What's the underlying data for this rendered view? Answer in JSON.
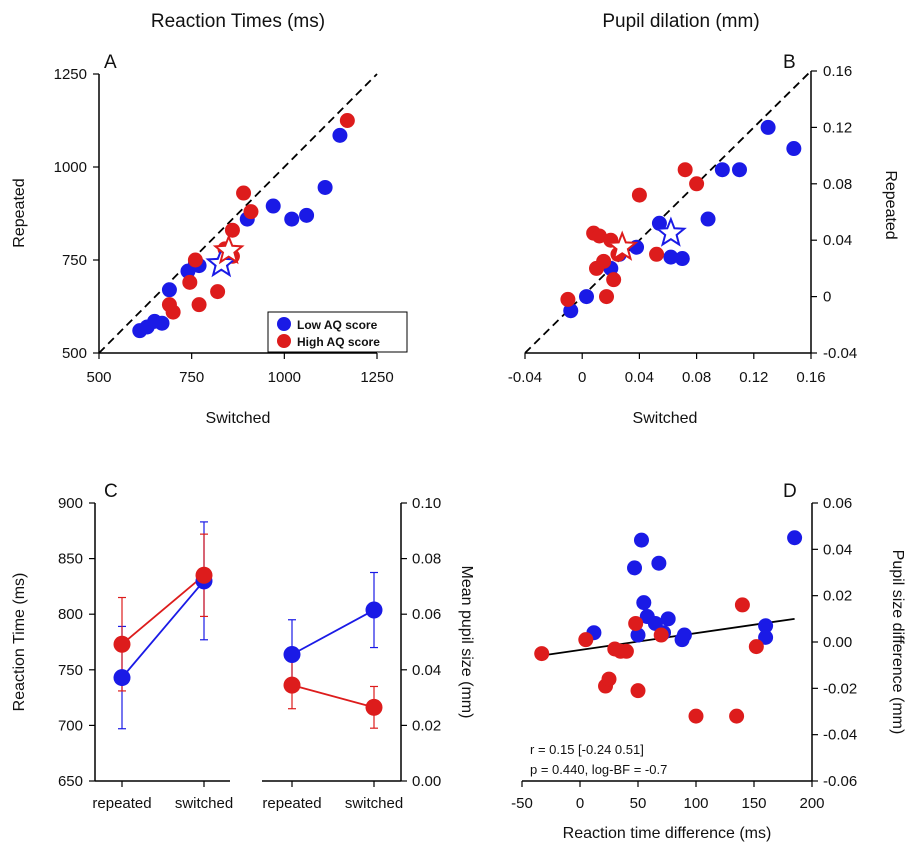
{
  "colors": {
    "low": "#1a1ae6",
    "high": "#dd1c1c",
    "axis": "#000000"
  },
  "chart_data": [
    {
      "panel": "A",
      "type": "scatter",
      "title": "Reaction Times (ms)",
      "xlabel": "Switched",
      "ylabel": "Repeated",
      "xlim": [
        500,
        1250
      ],
      "ylim": [
        500,
        1250
      ],
      "xticks": [
        500,
        750,
        1000,
        1250
      ],
      "yticks": [
        500,
        750,
        1000,
        1250
      ],
      "diagonal": true,
      "legend": {
        "position": "bottom-right",
        "entries": [
          "Low AQ score",
          "High AQ score"
        ]
      },
      "series": [
        {
          "name": "Low AQ score",
          "color": "low",
          "points": [
            [
              610,
              560
            ],
            [
              630,
              570
            ],
            [
              650,
              585
            ],
            [
              670,
              580
            ],
            [
              690,
              670
            ],
            [
              740,
              720
            ],
            [
              760,
              740
            ],
            [
              770,
              735
            ],
            [
              830,
              740
            ],
            [
              900,
              860
            ],
            [
              970,
              895
            ],
            [
              1020,
              860
            ],
            [
              1060,
              870
            ],
            [
              1110,
              945
            ],
            [
              1150,
              1085
            ]
          ],
          "mean": [
            830,
            740
          ]
        },
        {
          "name": "High AQ score",
          "color": "high",
          "points": [
            [
              690,
              630
            ],
            [
              700,
              610
            ],
            [
              745,
              690
            ],
            [
              760,
              750
            ],
            [
              770,
              630
            ],
            [
              820,
              665
            ],
            [
              840,
              780
            ],
            [
              860,
              830
            ],
            [
              860,
              760
            ],
            [
              890,
              930
            ],
            [
              910,
              880
            ],
            [
              1170,
              1125
            ]
          ],
          "mean": [
            850,
            775
          ]
        }
      ]
    },
    {
      "panel": "B",
      "type": "scatter",
      "title": "Pupil dilation (mm)",
      "xlabel": "Switched",
      "ylabel": "Repeated",
      "xlim": [
        -0.04,
        0.16
      ],
      "ylim": [
        -0.04,
        0.16
      ],
      "xticks": [
        -0.04,
        0,
        0.04,
        0.08,
        0.12,
        0.16
      ],
      "xtick_labels": [
        "-0.04",
        "0",
        "0.04",
        "0.08",
        "0.12",
        "0.16"
      ],
      "yticks": [
        -0.04,
        0,
        0.04,
        0.08,
        0.12,
        0.16
      ],
      "ytick_labels": [
        "-0.04",
        "0",
        "0.04",
        "0.08",
        "0.12",
        "0.16"
      ],
      "diagonal": true,
      "series": [
        {
          "name": "Low AQ score",
          "color": "low",
          "points": [
            [
              -0.008,
              -0.01
            ],
            [
              0.003,
              0.0
            ],
            [
              0.02,
              0.02
            ],
            [
              0.026,
              0.03
            ],
            [
              0.038,
              0.035
            ],
            [
              0.054,
              0.052
            ],
            [
              0.062,
              0.028
            ],
            [
              0.07,
              0.027
            ],
            [
              0.088,
              0.055
            ],
            [
              0.098,
              0.09
            ],
            [
              0.11,
              0.09
            ],
            [
              0.13,
              0.12
            ],
            [
              0.148,
              0.105
            ]
          ],
          "mean": [
            0.062,
            0.045
          ]
        },
        {
          "name": "High AQ score",
          "color": "high",
          "points": [
            [
              -0.01,
              -0.002
            ],
            [
              0.008,
              0.045
            ],
            [
              0.01,
              0.02
            ],
            [
              0.012,
              0.043
            ],
            [
              0.015,
              0.025
            ],
            [
              0.017,
              0.0
            ],
            [
              0.02,
              0.04
            ],
            [
              0.022,
              0.012
            ],
            [
              0.025,
              0.03
            ],
            [
              0.04,
              0.072
            ],
            [
              0.052,
              0.03
            ],
            [
              0.072,
              0.09
            ],
            [
              0.08,
              0.08
            ]
          ],
          "mean": [
            0.028,
            0.035
          ]
        }
      ]
    },
    {
      "panel": "C",
      "type": "line",
      "ylabel_left": "Reaction Time (ms)",
      "ylabel_right": "Mean pupil size (mm)",
      "categories": [
        "repeated",
        "switched"
      ],
      "left_ylim": [
        650,
        900
      ],
      "left_yticks": [
        650,
        700,
        750,
        800,
        850,
        900
      ],
      "right_ylim": [
        0,
        0.1
      ],
      "right_yticks": [
        0,
        0.02,
        0.04,
        0.06,
        0.08,
        0.1
      ],
      "right_ytick_labels": [
        "0.00",
        "0.02",
        "0.04",
        "0.06",
        "0.08",
        "0.10"
      ],
      "rt": [
        {
          "name": "Low AQ score",
          "color": "low",
          "values": [
            743,
            830
          ],
          "err": [
            46,
            53
          ]
        },
        {
          "name": "High AQ score",
          "color": "high",
          "values": [
            773,
            835
          ],
          "err": [
            42,
            37
          ]
        }
      ],
      "pupil": [
        {
          "name": "Low AQ score",
          "color": "low",
          "values": [
            0.0455,
            0.0615
          ],
          "err": [
            0.0125,
            0.0135
          ]
        },
        {
          "name": "High AQ score",
          "color": "high",
          "values": [
            0.0345,
            0.0265
          ],
          "err": [
            0.0085,
            0.0075
          ]
        }
      ]
    },
    {
      "panel": "D",
      "type": "scatter",
      "xlabel": "Reaction time difference (ms)",
      "ylabel": "Pupil size difference (mm)",
      "xlim": [
        -50,
        200
      ],
      "ylim": [
        -0.06,
        0.06
      ],
      "xticks": [
        -50,
        0,
        50,
        100,
        150,
        200
      ],
      "yticks": [
        -0.06,
        -0.04,
        -0.02,
        0,
        0.02,
        0.04,
        0.06
      ],
      "ytick_labels": [
        "-0.06",
        "-0.04",
        "-0.02",
        "0.00",
        "0.02",
        "0.04",
        "0.06"
      ],
      "fit_line": {
        "x": [
          -35,
          185
        ],
        "y": [
          -0.006,
          0.01
        ]
      },
      "stats": [
        "r = 0.15 [-0.24 0.51]",
        "p = 0.440, log-BF = -0.7"
      ],
      "series": [
        {
          "name": "Low AQ score",
          "color": "low",
          "points": [
            [
              12,
              0.004
            ],
            [
              47,
              0.032
            ],
            [
              50,
              0.003
            ],
            [
              53,
              0.044
            ],
            [
              55,
              0.017
            ],
            [
              58,
              0.011
            ],
            [
              65,
              0.008
            ],
            [
              68,
              0.034
            ],
            [
              72,
              0.004
            ],
            [
              76,
              0.01
            ],
            [
              88,
              0.001
            ],
            [
              90,
              0.003
            ],
            [
              160,
              0.007
            ],
            [
              160,
              0.002
            ],
            [
              185,
              0.045
            ]
          ]
        },
        {
          "name": "High AQ score",
          "color": "high",
          "points": [
            [
              -33,
              -0.005
            ],
            [
              5,
              0.001
            ],
            [
              22,
              -0.019
            ],
            [
              25,
              -0.016
            ],
            [
              30,
              -0.003
            ],
            [
              35,
              -0.004
            ],
            [
              40,
              -0.004
            ],
            [
              48,
              0.008
            ],
            [
              50,
              -0.021
            ],
            [
              70,
              0.003
            ],
            [
              100,
              -0.032
            ],
            [
              135,
              -0.032
            ],
            [
              140,
              0.016
            ],
            [
              152,
              -0.002
            ]
          ]
        }
      ]
    }
  ]
}
